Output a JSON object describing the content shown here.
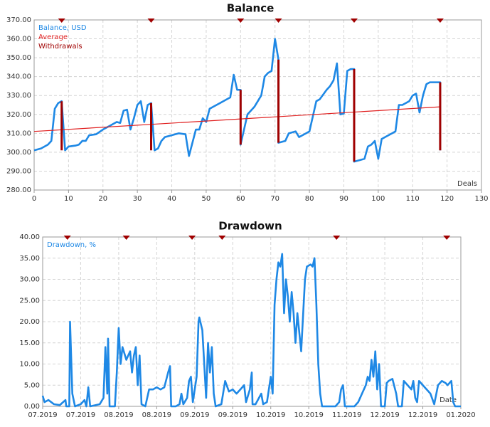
{
  "chart_data": [
    {
      "type": "line",
      "title": "Balance",
      "x_label": "Deals",
      "xlim": [
        0,
        130
      ],
      "xticks": [
        0,
        10,
        20,
        30,
        40,
        50,
        60,
        70,
        80,
        90,
        100,
        110,
        120,
        130
      ],
      "ylim": [
        280,
        370
      ],
      "yticks": [
        {
          "value": 280,
          "label": "280.00"
        },
        {
          "value": 290,
          "label": "290.00"
        },
        {
          "value": 300,
          "label": "300.00"
        },
        {
          "value": 310,
          "label": "310.00"
        },
        {
          "value": 320,
          "label": "320.00"
        },
        {
          "value": 330,
          "label": "330.00"
        },
        {
          "value": 340,
          "label": "340.00"
        },
        {
          "value": 350,
          "label": "350.00"
        },
        {
          "value": 360,
          "label": "360.00"
        },
        {
          "value": 370,
          "label": "370.00"
        }
      ],
      "grid": true,
      "legend": "top-left",
      "series": [
        {
          "name": "Balance, USD",
          "color": "#1e88e5",
          "kind": "line",
          "x": [
            0,
            2,
            4,
            5,
            6,
            7,
            8,
            9,
            10,
            12,
            13,
            14,
            15,
            16,
            18,
            20,
            22,
            24,
            25,
            26,
            27,
            28,
            29,
            30,
            31,
            32,
            33,
            34,
            35,
            36,
            37,
            38,
            40,
            42,
            44,
            45,
            46,
            47,
            48,
            49,
            50,
            51,
            52,
            54,
            56,
            57,
            58,
            59,
            60,
            60,
            61,
            62,
            64,
            66,
            67,
            68,
            69,
            70,
            71,
            71,
            73,
            74,
            76,
            77,
            79,
            80,
            81,
            82,
            83,
            85,
            86,
            87,
            88,
            89,
            90,
            91,
            92,
            93,
            93,
            95,
            96,
            97,
            98,
            99,
            100,
            101,
            102,
            104,
            105,
            106,
            107,
            108,
            109,
            110,
            111,
            112,
            113,
            114,
            115,
            116,
            118,
            118
          ],
          "values": [
            301,
            302,
            304,
            306,
            323,
            326,
            327,
            301,
            303,
            303.5,
            304,
            306,
            306,
            309,
            309.5,
            312,
            314,
            316,
            315.5,
            322,
            322.5,
            312,
            318,
            325,
            327,
            316,
            325,
            326,
            301,
            302,
            306,
            308,
            309,
            310,
            309.5,
            298,
            305,
            312,
            312,
            318,
            316,
            323,
            324,
            326,
            328,
            329,
            341,
            333,
            333,
            304,
            312,
            320,
            324,
            330,
            340,
            342,
            343,
            360,
            349,
            305,
            306,
            310,
            311,
            308,
            310,
            311,
            319,
            327,
            328,
            333,
            335,
            338,
            347,
            320,
            320.5,
            343,
            344,
            344,
            295,
            296,
            296.5,
            303,
            304,
            306,
            296.5,
            307,
            308,
            310,
            311,
            325,
            325,
            326,
            327,
            330,
            331,
            321,
            330,
            336,
            337,
            337,
            337,
            301
          ]
        },
        {
          "name": "Average",
          "color": "#e02020",
          "kind": "line",
          "width": 1.2,
          "x": [
            0,
            118
          ],
          "values": [
            311,
            324
          ]
        },
        {
          "name": "Withdrawals",
          "color": "#a00000",
          "kind": "drop",
          "x": [
            8,
            34,
            60,
            71,
            93,
            118
          ],
          "values": [
            327,
            326,
            333,
            349,
            344,
            337
          ],
          "low": [
            301,
            301,
            304,
            305,
            295,
            301
          ]
        }
      ]
    },
    {
      "type": "line",
      "title": "Drawdown",
      "x_label": "Date",
      "xlim": [
        0,
        11
      ],
      "xticks": [
        {
          "value": 0,
          "label": "07.2019"
        },
        {
          "value": 1,
          "label": "07.2019"
        },
        {
          "value": 2,
          "label": "08.2019"
        },
        {
          "value": 3,
          "label": "08.2019"
        },
        {
          "value": 4,
          "label": "09.2019"
        },
        {
          "value": 5,
          "label": "09.2019"
        },
        {
          "value": 6,
          "label": "10.2019"
        },
        {
          "value": 7,
          "label": "10.2019"
        },
        {
          "value": 8,
          "label": "11.2019"
        },
        {
          "value": 9,
          "label": "12.2019"
        },
        {
          "value": 10,
          "label": "12.2019"
        },
        {
          "value": 11,
          "label": "01.2020"
        }
      ],
      "ylim": [
        0,
        40
      ],
      "yticks": [
        {
          "value": 0,
          "label": "0.00"
        },
        {
          "value": 5,
          "label": "5.00"
        },
        {
          "value": 10,
          "label": "10.00"
        },
        {
          "value": 15,
          "label": "15.00"
        },
        {
          "value": 20,
          "label": "20.00"
        },
        {
          "value": 25,
          "label": "25.00"
        },
        {
          "value": 30,
          "label": "30.00"
        },
        {
          "value": 35,
          "label": "35.00"
        },
        {
          "value": 40,
          "label": "40.00"
        }
      ],
      "grid": true,
      "legend": "top-left",
      "markers": [
        0.65,
        2.2,
        3.93,
        4.72,
        7.73,
        10.63
      ],
      "series": [
        {
          "name": "Drawdown, %",
          "color": "#1e88e5",
          "kind": "line",
          "x": [
            0,
            0.05,
            0.15,
            0.3,
            0.45,
            0.6,
            0.62,
            0.7,
            0.72,
            0.78,
            0.85,
            1.0,
            1.1,
            1.15,
            1.2,
            1.25,
            1.5,
            1.6,
            1.65,
            1.7,
            1.72,
            1.76,
            1.9,
            1.95,
            2.0,
            2.05,
            2.1,
            2.2,
            2.3,
            2.35,
            2.4,
            2.45,
            2.5,
            2.55,
            2.6,
            2.7,
            2.8,
            2.9,
            3.0,
            3.1,
            3.2,
            3.3,
            3.35,
            3.38,
            3.5,
            3.6,
            3.65,
            3.7,
            3.8,
            3.85,
            3.9,
            3.95,
            4.05,
            4.1,
            4.12,
            4.2,
            4.25,
            4.3,
            4.35,
            4.4,
            4.45,
            4.5,
            4.55,
            4.7,
            4.8,
            4.9,
            5.0,
            5.1,
            5.2,
            5.3,
            5.35,
            5.45,
            5.5,
            5.52,
            5.6,
            5.75,
            5.8,
            5.9,
            6.0,
            6.05,
            6.1,
            6.15,
            6.2,
            6.25,
            6.3,
            6.35,
            6.4,
            6.45,
            6.5,
            6.55,
            6.6,
            6.65,
            6.7,
            6.8,
            6.9,
            6.95,
            7.05,
            7.1,
            7.15,
            7.2,
            7.25,
            7.3,
            7.35,
            7.7,
            7.8,
            7.85,
            7.9,
            7.95,
            8.2,
            8.3,
            8.4,
            8.45,
            8.5,
            8.55,
            8.6,
            8.65,
            8.7,
            8.75,
            8.8,
            8.85,
            8.9,
            9.0,
            9.05,
            9.1,
            9.2,
            9.3,
            9.35,
            9.45,
            9.5,
            9.6,
            9.7,
            9.75,
            9.8,
            9.85,
            9.9,
            10.0,
            10.2,
            10.3,
            10.4,
            10.5,
            10.6,
            10.65,
            10.75,
            10.8,
            10.85,
            11
          ],
          "values": [
            2.5,
            1,
            1.5,
            0.5,
            0.3,
            1.5,
            0,
            0,
            20,
            3,
            0,
            0.5,
            1.5,
            0,
            4.5,
            0,
            0.5,
            2,
            14,
            3,
            16,
            0,
            0,
            8,
            18.5,
            10,
            14,
            11,
            13,
            8,
            12,
            14,
            5,
            12,
            0.5,
            0,
            4,
            4,
            4.5,
            4,
            4.5,
            8,
            9.5,
            0,
            0,
            0.5,
            3,
            0.5,
            2,
            6,
            7,
            1,
            7,
            20,
            21,
            18,
            10,
            2,
            15,
            8,
            14,
            3,
            0,
            0.5,
            6,
            3.5,
            4,
            3,
            4,
            5,
            1,
            4,
            8,
            0.5,
            0.5,
            3,
            0.5,
            1,
            7,
            3,
            24,
            30,
            34,
            33,
            36,
            22,
            30,
            26,
            20,
            27,
            22,
            15,
            22,
            13,
            30,
            33,
            33.5,
            33,
            35,
            24,
            10,
            3,
            0,
            0,
            1,
            4,
            5,
            0,
            0,
            1,
            3,
            4,
            5,
            7,
            6,
            11,
            7,
            13,
            4,
            10,
            0,
            0,
            5.5,
            6,
            6.5,
            3,
            0,
            0,
            6,
            5,
            4,
            6,
            2,
            1,
            6,
            5,
            3,
            0.5,
            5,
            6,
            5.5,
            5,
            6,
            1,
            0,
            0
          ]
        }
      ]
    }
  ]
}
